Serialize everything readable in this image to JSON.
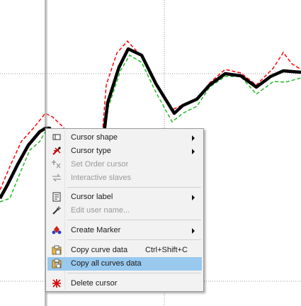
{
  "colors": {
    "main_curve": "#000000",
    "red_curve": "#ff0000",
    "green_curve": "#22bb22",
    "highlight": "#99c9ef",
    "menu_bg": "#f2f2f2"
  },
  "context_menu": {
    "items": [
      {
        "label": "Cursor shape",
        "icon": "cursor-shape-icon",
        "submenu": true,
        "disabled": false
      },
      {
        "label": "Cursor type",
        "icon": "cursor-type-icon",
        "submenu": true,
        "disabled": false
      },
      {
        "label": "Set Order cursor",
        "icon": "order-cursor-icon",
        "submenu": false,
        "disabled": true
      },
      {
        "label": "Interactive slaves",
        "icon": "slaves-icon",
        "submenu": false,
        "disabled": true
      },
      {
        "label": "Cursor label",
        "icon": "cursor-label-icon",
        "submenu": true,
        "disabled": false
      },
      {
        "label": "Edit user name...",
        "icon": "edit-name-icon",
        "submenu": false,
        "disabled": true
      },
      {
        "label": "Create Marker",
        "icon": "marker-icon",
        "submenu": true,
        "disabled": false
      },
      {
        "label": "Copy curve data",
        "icon": "copy-icon",
        "shortcut": "Ctrl+Shift+C",
        "submenu": false,
        "disabled": false
      },
      {
        "label": "Copy all curves data",
        "icon": "copy-all-icon",
        "submenu": false,
        "disabled": false,
        "highlighted": true
      },
      {
        "label": "Delete cursor",
        "icon": "delete-icon",
        "submenu": false,
        "disabled": false
      }
    ]
  }
}
